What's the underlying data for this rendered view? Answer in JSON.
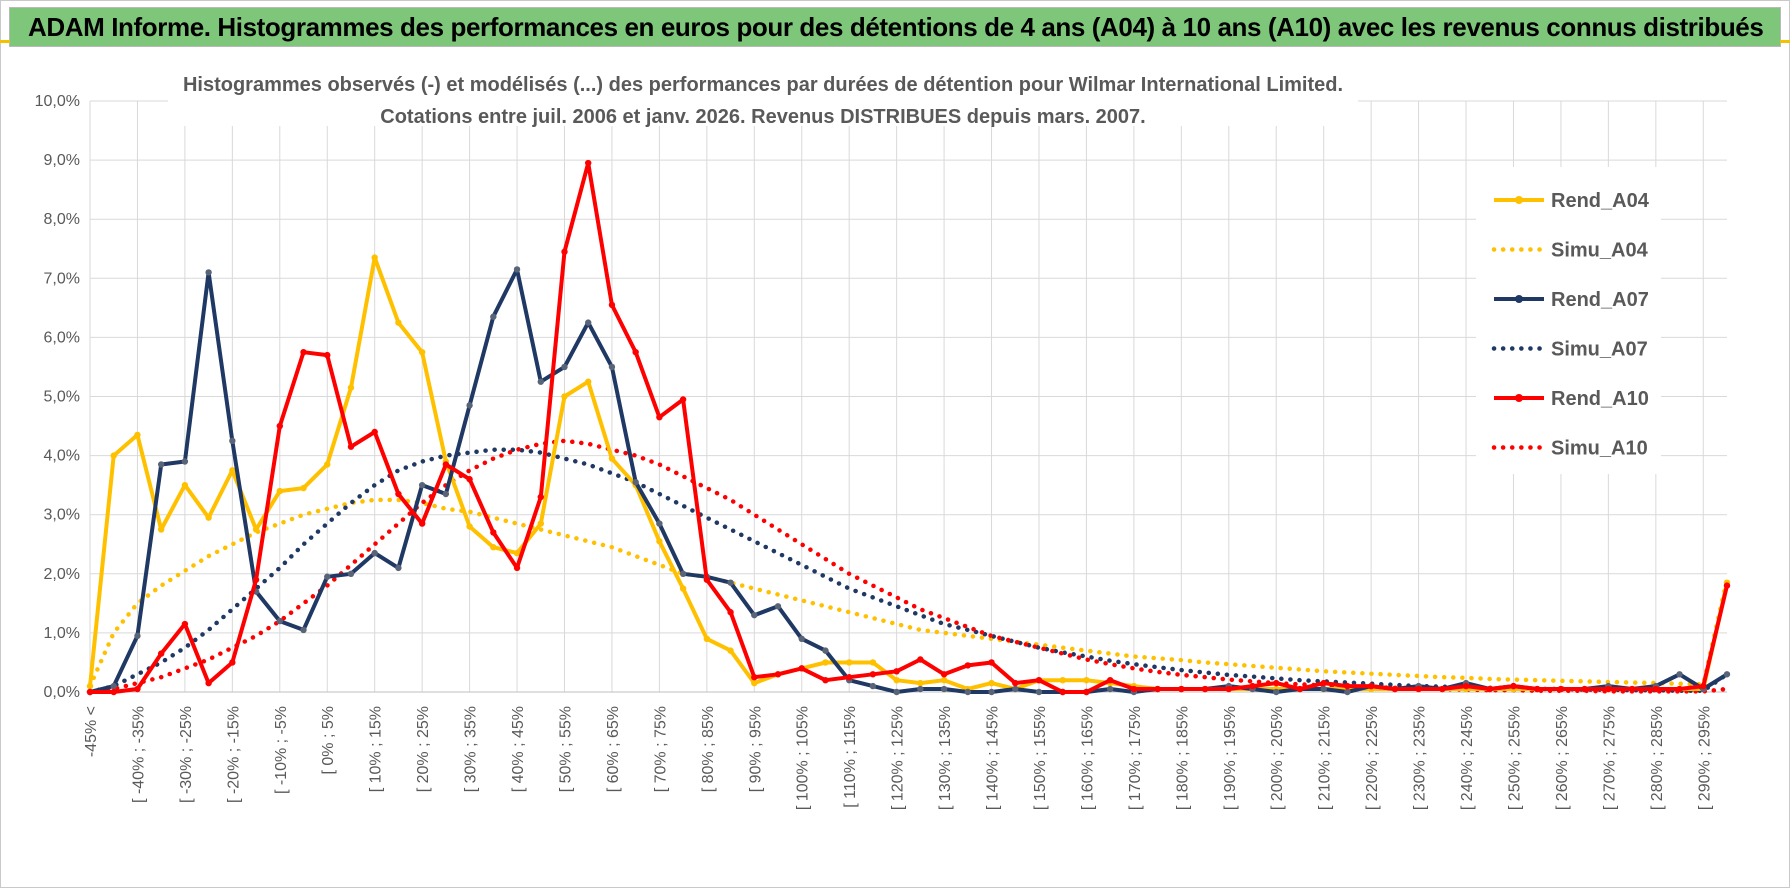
{
  "header": {
    "title": "ADAM Informe. Histogrammes des performances en euros pour des détentions de 4 ans (A04) à 10 ans (A10) avec les revenus connus distribués"
  },
  "colors": {
    "banner": "#7ec77a",
    "A04": "#ffc000",
    "A07": "#1f3864",
    "A10": "#ff0000",
    "grid": "#d9d9d9",
    "text": "#595959"
  },
  "chart_data": {
    "type": "line",
    "title_lines": [
      "Histogrammes observés (-) et modélisés (...) des performances par durées de détention pour Wilmar International Limited.",
      "Cotations entre juil. 2006 et janv. 2026. Revenus DISTRIBUES depuis mars. 2007."
    ],
    "ylim": [
      0,
      10
    ],
    "y_ticks": [
      "0,0%",
      "1,0%",
      "2,0%",
      "3,0%",
      "4,0%",
      "5,0%",
      "6,0%",
      "7,0%",
      "8,0%",
      "9,0%",
      "10,0%"
    ],
    "x_labels": [
      "-45% <",
      "[ -40% ; -35%",
      "[ -30% ; -25%",
      "[ -20% ; -15%",
      "[ -10% ; -5%",
      "[ 0% ; 5%",
      "[ 10% ; 15%",
      "[ 20% ; 25%",
      "[ 30% ; 35%",
      "[ 40% ; 45%",
      "[ 50% ; 55%",
      "[ 60% ; 65%",
      "[ 70% ; 75%",
      "[ 80% ; 85%",
      "[ 90% ; 95%",
      "[ 100% ; 105%",
      "[ 110% ; 115%",
      "[ 120% ; 125%",
      "[ 130% ; 135%",
      "[ 140% ; 145%",
      "[ 150% ; 155%",
      "[ 160% ; 165%",
      "[ 170% ; 175%",
      "[ 180% ; 185%",
      "[ 190% ; 195%",
      "[ 200% ; 205%",
      "[ 210% ; 215%",
      "[ 220% ; 225%",
      "[ 230% ; 235%",
      "[ 240% ; 245%",
      "[ 250% ; 255%",
      "[ 260% ; 265%",
      "[ 270% ; 275%",
      "[ 280% ; 285%",
      "[ 290% ; 295%"
    ],
    "category_count": 70,
    "grid": true,
    "legend_position": "right",
    "series": [
      {
        "name": "Rend_A04",
        "style": "solid",
        "color": "#ffc000",
        "markers": true,
        "values": [
          0.1,
          4.0,
          4.35,
          2.75,
          3.5,
          2.95,
          3.75,
          2.75,
          3.4,
          3.45,
          3.85,
          5.15,
          7.35,
          6.25,
          5.75,
          3.9,
          2.8,
          2.45,
          2.35,
          2.85,
          5.0,
          5.25,
          3.95,
          3.5,
          2.55,
          1.75,
          0.9,
          0.7,
          0.15,
          0.3,
          0.4,
          0.5,
          0.5,
          0.5,
          0.2,
          0.15,
          0.2,
          0.05,
          0.15,
          0.05,
          0.2,
          0.2,
          0.2,
          0.15,
          0.1,
          0.05,
          0.05,
          0.05,
          0.05,
          0.05,
          0.05,
          0.05,
          0.05,
          0.05,
          0.05,
          0.05,
          0.05,
          0.05,
          0.05,
          0.05,
          0.05,
          0.05,
          0.05,
          0.05,
          0.05,
          0.05,
          0.05,
          0.05,
          0.05,
          1.85
        ]
      },
      {
        "name": "Simu_A04",
        "style": "dotted",
        "color": "#ffc000",
        "markers": false,
        "values": [
          0.1,
          1.0,
          1.5,
          1.8,
          2.05,
          2.3,
          2.5,
          2.7,
          2.85,
          3.0,
          3.1,
          3.2,
          3.25,
          3.25,
          3.2,
          3.1,
          3.05,
          2.95,
          2.85,
          2.75,
          2.65,
          2.55,
          2.45,
          2.3,
          2.15,
          2.0,
          1.95,
          1.85,
          1.75,
          1.65,
          1.55,
          1.45,
          1.35,
          1.25,
          1.15,
          1.05,
          1.0,
          0.95,
          0.9,
          0.85,
          0.8,
          0.75,
          0.7,
          0.65,
          0.6,
          0.57,
          0.54,
          0.5,
          0.47,
          0.44,
          0.41,
          0.38,
          0.35,
          0.33,
          0.31,
          0.29,
          0.27,
          0.25,
          0.24,
          0.22,
          0.21,
          0.2,
          0.19,
          0.18,
          0.17,
          0.16,
          0.15,
          0.14,
          0.13,
          1.9
        ]
      },
      {
        "name": "Rend_A07",
        "style": "solid",
        "color": "#1f3864",
        "markers": true,
        "values": [
          0.0,
          0.1,
          0.95,
          3.85,
          3.9,
          7.1,
          4.25,
          1.7,
          1.2,
          1.05,
          1.95,
          2.0,
          2.35,
          2.1,
          3.5,
          3.35,
          4.85,
          6.35,
          7.15,
          5.25,
          5.5,
          6.25,
          5.5,
          3.55,
          2.85,
          2.0,
          1.95,
          1.85,
          1.3,
          1.45,
          0.9,
          0.7,
          0.2,
          0.1,
          0.0,
          0.05,
          0.05,
          0.0,
          0.0,
          0.05,
          0.0,
          0.0,
          0.0,
          0.05,
          0.0,
          0.05,
          0.05,
          0.05,
          0.1,
          0.05,
          0.0,
          0.05,
          0.05,
          0.0,
          0.1,
          0.05,
          0.1,
          0.05,
          0.15,
          0.05,
          0.1,
          0.05,
          0.05,
          0.05,
          0.1,
          0.05,
          0.1,
          0.3,
          0.05,
          0.3
        ]
      },
      {
        "name": "Simu_A07",
        "style": "dotted",
        "color": "#1f3864",
        "markers": false,
        "values": [
          0.0,
          0.1,
          0.3,
          0.5,
          0.75,
          1.05,
          1.4,
          1.75,
          2.1,
          2.5,
          2.85,
          3.2,
          3.5,
          3.75,
          3.9,
          4.0,
          4.05,
          4.1,
          4.1,
          4.05,
          3.95,
          3.85,
          3.7,
          3.55,
          3.35,
          3.15,
          2.95,
          2.75,
          2.55,
          2.35,
          2.15,
          1.95,
          1.75,
          1.6,
          1.45,
          1.3,
          1.15,
          1.05,
          0.95,
          0.85,
          0.75,
          0.67,
          0.6,
          0.53,
          0.47,
          0.42,
          0.37,
          0.33,
          0.29,
          0.26,
          0.23,
          0.2,
          0.18,
          0.16,
          0.14,
          0.12,
          0.1,
          0.09,
          0.08,
          0.07,
          0.06,
          0.05,
          0.05,
          0.04,
          0.04,
          0.03,
          0.03,
          0.02,
          0.02,
          0.3
        ]
      },
      {
        "name": "Rend_A10",
        "style": "solid",
        "color": "#ff0000",
        "markers": true,
        "values": [
          0.0,
          0.0,
          0.05,
          0.65,
          1.15,
          0.15,
          0.5,
          1.9,
          4.5,
          5.75,
          5.7,
          4.15,
          4.4,
          3.35,
          2.85,
          3.85,
          3.6,
          2.7,
          2.1,
          3.3,
          7.45,
          8.95,
          6.55,
          5.75,
          4.65,
          4.95,
          1.9,
          1.35,
          0.25,
          0.3,
          0.4,
          0.2,
          0.25,
          0.3,
          0.35,
          0.55,
          0.3,
          0.45,
          0.5,
          0.15,
          0.2,
          0.0,
          0.0,
          0.2,
          0.05,
          0.05,
          0.05,
          0.05,
          0.05,
          0.1,
          0.15,
          0.05,
          0.15,
          0.1,
          0.1,
          0.05,
          0.05,
          0.05,
          0.1,
          0.05,
          0.1,
          0.05,
          0.05,
          0.05,
          0.05,
          0.05,
          0.05,
          0.05,
          0.1,
          1.8
        ]
      },
      {
        "name": "Simu_A10",
        "style": "dotted",
        "color": "#ff0000",
        "markers": false,
        "values": [
          0.0,
          0.05,
          0.15,
          0.25,
          0.4,
          0.55,
          0.75,
          0.95,
          1.2,
          1.5,
          1.8,
          2.15,
          2.5,
          2.85,
          3.2,
          3.5,
          3.75,
          3.95,
          4.1,
          4.2,
          4.25,
          4.2,
          4.1,
          4.0,
          3.85,
          3.65,
          3.45,
          3.25,
          3.0,
          2.75,
          2.5,
          2.25,
          2.0,
          1.8,
          1.6,
          1.4,
          1.25,
          1.1,
          0.95,
          0.85,
          0.75,
          0.65,
          0.55,
          0.47,
          0.4,
          0.34,
          0.29,
          0.25,
          0.21,
          0.18,
          0.15,
          0.13,
          0.11,
          0.09,
          0.08,
          0.07,
          0.06,
          0.05,
          0.04,
          0.03,
          0.03,
          0.02,
          0.02,
          0.02,
          0.01,
          0.01,
          0.01,
          0.01,
          0.01,
          0.05
        ]
      }
    ]
  }
}
